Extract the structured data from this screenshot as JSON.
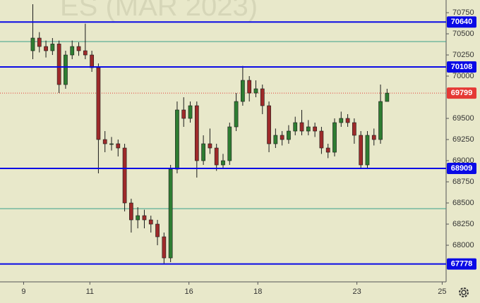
{
  "chart_data": {
    "type": "candlestick",
    "watermark": "ES (MAR 2023)",
    "up_color": "#2e7d32",
    "down_color": "#9e2a2a",
    "open": [
      70300,
      70450,
      70350,
      70300,
      70380,
      69900,
      70250,
      70350,
      70300,
      70250,
      70100,
      69250,
      69200,
      69200,
      69150,
      68500,
      68300,
      68350,
      68300,
      68250,
      68100,
      67850,
      68900,
      69600,
      69500,
      69650,
      69000,
      69200,
      69150,
      68950,
      69000,
      69400,
      69700,
      69950,
      69800,
      69850,
      69650,
      69200,
      69300,
      69250,
      69350,
      69450,
      69350,
      69400,
      69350,
      69150,
      69100,
      69450,
      69500,
      69450,
      69300,
      68950,
      69300,
      69250,
      69700
    ],
    "high": [
      70850,
      70520,
      70420,
      70450,
      70420,
      70300,
      70420,
      70400,
      70620,
      70300,
      70150,
      69350,
      69280,
      69250,
      69200,
      68550,
      68450,
      68420,
      68350,
      68300,
      68150,
      68950,
      69700,
      69750,
      69700,
      69700,
      69300,
      69380,
      69200,
      69080,
      69450,
      69800,
      70120,
      70000,
      69950,
      69900,
      69700,
      69380,
      69350,
      69420,
      69520,
      69600,
      69480,
      69450,
      69400,
      69200,
      69500,
      69580,
      69550,
      69500,
      69350,
      69350,
      69380,
      69900,
      69850
    ],
    "low": [
      70200,
      70280,
      70220,
      70250,
      69800,
      69850,
      70200,
      70240,
      70200,
      70050,
      68850,
      69100,
      69120,
      69050,
      68400,
      68150,
      68200,
      68200,
      68150,
      68000,
      67780,
      67800,
      68850,
      69400,
      69450,
      68800,
      68950,
      69080,
      68880,
      68900,
      68950,
      69350,
      69650,
      69700,
      69750,
      69550,
      69100,
      69150,
      69180,
      69200,
      69300,
      69300,
      69300,
      69280,
      69080,
      69030,
      69050,
      69400,
      69400,
      69200,
      68900,
      68900,
      69180,
      69200,
      69700
    ],
    "close": [
      70450,
      70350,
      70300,
      70380,
      69900,
      70250,
      70350,
      70300,
      70250,
      70100,
      69250,
      69200,
      69200,
      69150,
      68500,
      68300,
      68350,
      68300,
      68250,
      68100,
      67850,
      68900,
      69600,
      69500,
      69650,
      69000,
      69200,
      69150,
      68950,
      69000,
      69400,
      69700,
      69950,
      69800,
      69850,
      69650,
      69200,
      69300,
      69250,
      69350,
      69450,
      69350,
      69400,
      69350,
      69150,
      69100,
      69450,
      69500,
      69450,
      69300,
      68950,
      69300,
      69250,
      69700,
      69799
    ],
    "xlim": [
      -4,
      64
    ],
    "xticks": [
      {
        "value": -0.4,
        "label": "9"
      },
      {
        "value": 9.7,
        "label": "11"
      },
      {
        "value": 24.8,
        "label": "16"
      },
      {
        "value": 35.3,
        "label": "18"
      },
      {
        "value": 50.4,
        "label": "23"
      },
      {
        "value": 63.4,
        "label": "25"
      }
    ],
    "ylim": [
      67567,
      70900
    ],
    "yticks": [
      68000,
      68250,
      68500,
      68750,
      69000,
      69250,
      69500,
      70000,
      70250,
      70500,
      70750
    ],
    "levels": [
      70640,
      70108,
      68909,
      67778
    ],
    "level_color": "#0a0ae6",
    "guides": [
      70408,
      68433
    ],
    "guide_color": "#3aa08a",
    "last": 69799,
    "last_color": "#e53935"
  }
}
